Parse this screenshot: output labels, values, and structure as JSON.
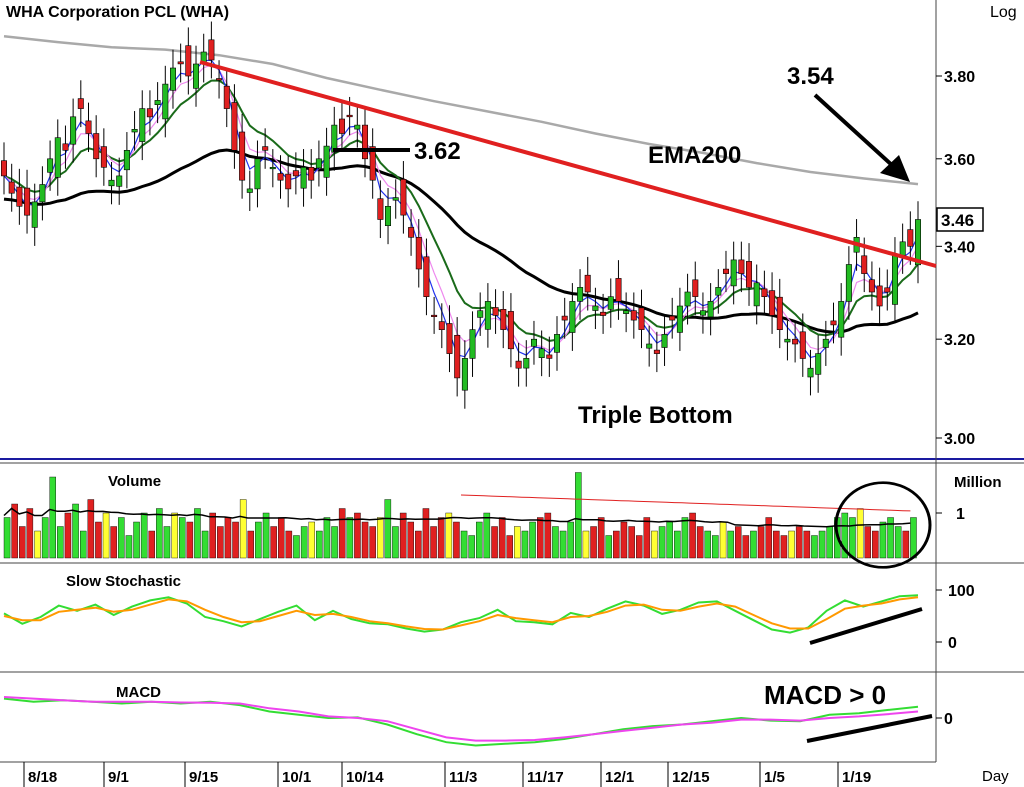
{
  "chart_data": [
    {
      "type": "candlestick",
      "title": "WHA  Corporation  PCL  (WHA)",
      "scale_label": "Log",
      "interval_label": "Day",
      "x_ticks": [
        "8/18",
        "9/1",
        "9/15",
        "10/1",
        "10/14",
        "11/3",
        "11/17",
        "12/1",
        "12/15",
        "1/5",
        "1/19"
      ],
      "y_ticks": [
        {
          "value": 3.8,
          "label": "3.80"
        },
        {
          "value": 3.6,
          "label": "3.60"
        },
        {
          "value": 3.4,
          "label": "3.40"
        },
        {
          "value": 3.2,
          "label": "3.20"
        },
        {
          "value": 3.0,
          "label": "3.00"
        }
      ],
      "ylim": [
        2.96,
        3.94
      ],
      "last_price": "3.46",
      "annotations": {
        "resistance_level": "3.62",
        "ema200_level": "3.54",
        "ema200_label": "EMA200",
        "pattern_label": "Triple Bottom"
      },
      "closes": [
        3.56,
        3.52,
        3.49,
        3.47,
        3.5,
        3.54,
        3.6,
        3.65,
        3.62,
        3.7,
        3.72,
        3.66,
        3.6,
        3.58,
        3.55,
        3.56,
        3.62,
        3.67,
        3.72,
        3.7,
        3.74,
        3.78,
        3.82,
        3.83,
        3.8,
        3.83,
        3.86,
        3.84,
        3.79,
        3.72,
        3.62,
        3.55,
        3.53,
        3.6,
        3.62,
        3.58,
        3.55,
        3.53,
        3.56,
        3.58,
        3.55,
        3.6,
        3.63,
        3.68,
        3.66,
        3.7,
        3.68,
        3.6,
        3.55,
        3.46,
        3.49,
        3.51,
        3.47,
        3.42,
        3.35,
        3.29,
        3.25,
        3.22,
        3.17,
        3.12,
        3.16,
        3.22,
        3.26,
        3.28,
        3.25,
        3.22,
        3.18,
        3.14,
        3.16,
        3.2,
        3.18,
        3.16,
        3.21,
        3.24,
        3.28,
        3.31,
        3.3,
        3.27,
        3.25,
        3.29,
        3.28,
        3.26,
        3.24,
        3.22,
        3.19,
        3.17,
        3.21,
        3.24,
        3.27,
        3.3,
        3.29,
        3.26,
        3.28,
        3.31,
        3.34,
        3.37,
        3.34,
        3.31,
        3.32,
        3.29,
        3.25,
        3.22,
        3.2,
        3.19,
        3.16,
        3.14,
        3.17,
        3.2,
        3.23,
        3.28,
        3.36,
        3.42,
        3.34,
        3.3,
        3.27,
        3.3,
        3.38,
        3.41,
        3.4,
        3.46
      ],
      "series": [
        {
          "name": "EMA200",
          "color": "#a9a9a9",
          "values": [
            3.9,
            3.885,
            3.872,
            3.866,
            3.852,
            3.83,
            3.795,
            3.766,
            3.738,
            3.713,
            3.688,
            3.66,
            3.635,
            3.614,
            3.59,
            3.569,
            3.554,
            3.541
          ]
        }
      ],
      "volume": {
        "label": "Volume",
        "unit": "Million",
        "y_ticks": [
          {
            "value": 1,
            "label": "1"
          }
        ],
        "ylim": [
          0,
          2.0
        ],
        "bar_colors": {
          "up": "#33dd33",
          "down": "#e02020",
          "unchanged": "#ffff33"
        },
        "values": [
          0.9,
          1.2,
          0.7,
          1.1,
          0.6,
          0.9,
          1.8,
          0.7,
          1.0,
          1.2,
          0.6,
          1.3,
          0.8,
          1.0,
          0.7,
          0.9,
          0.5,
          0.8,
          1.0,
          0.6,
          1.1,
          0.7,
          1.0,
          0.9,
          0.8,
          1.1,
          0.6,
          1.0,
          0.7,
          0.9,
          0.8,
          1.3,
          0.6,
          0.8,
          1.0,
          0.7,
          0.9,
          0.6,
          0.5,
          0.7,
          0.8,
          0.6,
          0.9,
          0.7,
          1.1,
          0.9,
          1.0,
          0.8,
          0.7,
          0.9,
          1.3,
          0.7,
          1.0,
          0.8,
          0.6,
          1.1,
          0.7,
          0.9,
          1.0,
          0.8,
          0.6,
          0.5,
          0.8,
          1.0,
          0.7,
          0.9,
          0.5,
          0.7,
          0.6,
          0.8,
          0.9,
          1.0,
          0.7,
          0.6,
          0.8,
          1.9,
          0.6,
          0.7,
          0.9,
          0.5,
          0.6,
          0.8,
          0.7,
          0.5,
          0.9,
          0.6,
          0.7,
          0.8,
          0.6,
          0.9,
          1.0,
          0.7,
          0.6,
          0.5,
          0.8,
          0.6,
          0.7,
          0.5,
          0.6,
          0.7,
          0.9,
          0.6,
          0.5,
          0.6,
          0.7,
          0.6,
          0.5,
          0.6,
          0.7,
          0.9,
          1.0,
          0.9,
          1.1,
          0.7,
          0.6,
          0.8,
          0.9,
          0.7,
          0.6,
          0.9
        ]
      },
      "slow_stochastic": {
        "label": "Slow  Stochastic",
        "y_ticks": [
          {
            "value": 100,
            "label": "100"
          },
          {
            "value": 0,
            "label": "0"
          }
        ],
        "ylim": [
          -18,
          118
        ],
        "series": [
          {
            "color": "#33dd33",
            "values": [
              55,
              35,
              48,
              70,
              60,
              72,
              52,
              68,
              80,
              86,
              74,
              48,
              40,
              30,
              44,
              58,
              70,
              42,
              60,
              44,
              36,
              34,
              26,
              20,
              24,
              38,
              46,
              62,
              40,
              38,
              34,
              56,
              48,
              64,
              78,
              70,
              54,
              62,
              76,
              78,
              60,
              42,
              24,
              18,
              28,
              60,
              80,
              68,
              78,
              88,
              90
            ]
          },
          {
            "color": "#ff9900",
            "values": [
              50,
              42,
              42,
              58,
              62,
              66,
              58,
              62,
              72,
              82,
              78,
              62,
              48,
              38,
              40,
              50,
              60,
              52,
              54,
              48,
              40,
              36,
              30,
              25,
              24,
              32,
              40,
              52,
              46,
              42,
              38,
              48,
              50,
              58,
              70,
              72,
              62,
              60,
              68,
              74,
              68,
              52,
              36,
              26,
              26,
              44,
              64,
              70,
              74,
              82,
              86
            ]
          }
        ]
      },
      "macd": {
        "label": "MACD",
        "headline": "MACD > 0",
        "y_ticks": [
          {
            "value": 0,
            "label": "0"
          }
        ],
        "ylim": [
          -0.13,
          0.13
        ],
        "series": [
          {
            "color": "#33dd33",
            "values": [
              0.06,
              0.05,
              0.055,
              0.05,
              0.045,
              0.05,
              0.045,
              0.05,
              0.04,
              0.02,
              0.01,
              0.0,
              0.002,
              -0.02,
              -0.05,
              -0.075,
              -0.085,
              -0.08,
              -0.075,
              -0.065,
              -0.05,
              -0.035,
              -0.025,
              -0.02,
              -0.01,
              0.0,
              -0.008,
              -0.01,
              0.01,
              0.015,
              0.025,
              0.035
            ]
          },
          {
            "color": "#ee44ee",
            "values": [
              0.065,
              0.06,
              0.055,
              0.05,
              0.05,
              0.05,
              0.048,
              0.047,
              0.045,
              0.03,
              0.02,
              0.005,
              0.0,
              -0.01,
              -0.035,
              -0.06,
              -0.07,
              -0.07,
              -0.068,
              -0.06,
              -0.05,
              -0.04,
              -0.03,
              -0.02,
              -0.015,
              -0.005,
              -0.005,
              -0.008,
              0.0,
              0.005,
              0.012,
              0.02
            ]
          }
        ]
      }
    }
  ]
}
